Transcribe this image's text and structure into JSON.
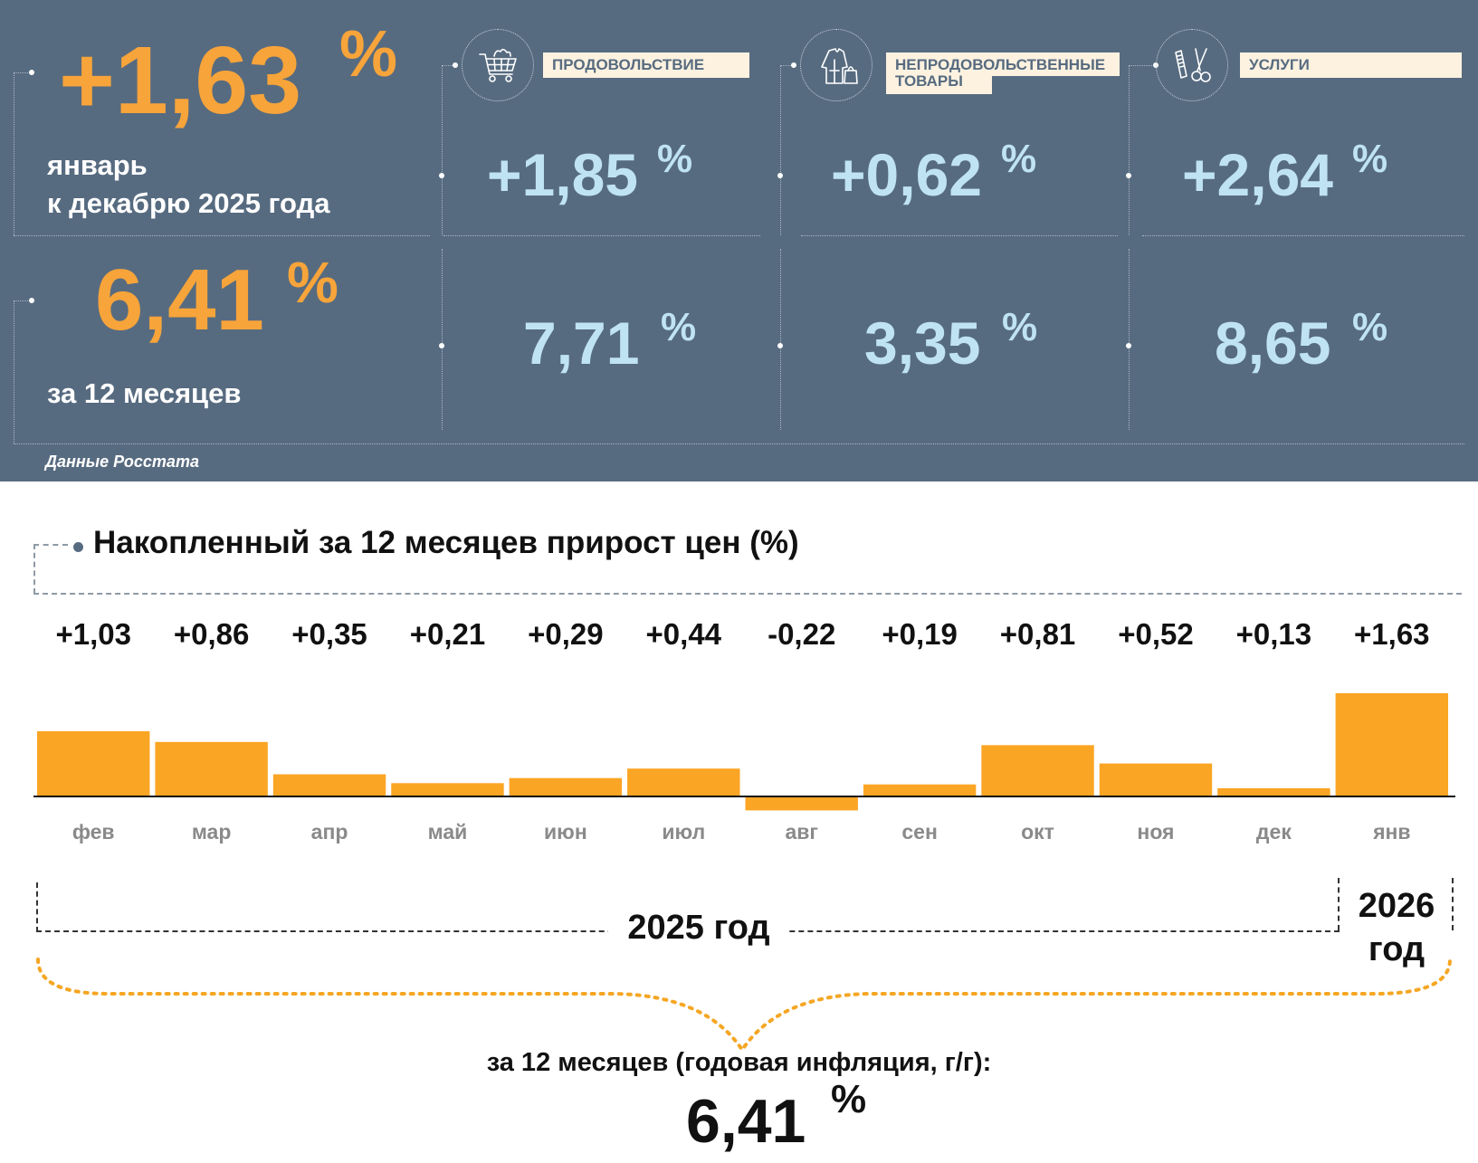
{
  "summary": {
    "monthly": {
      "value": "+1,63",
      "unit": "%",
      "line1": "январь",
      "line2": "к декабрю 2025 года"
    },
    "annual": {
      "value": "6,41",
      "unit": "%",
      "label": "за 12 месяцев"
    },
    "source": "Данные Росстата"
  },
  "categories": [
    {
      "label": "ПРОДОВОЛЬСТВИЕ",
      "icon": "shopping-cart-icon",
      "monthly": "+1,85",
      "annual": "7,71",
      "unit": "%"
    },
    {
      "label_line1": "НЕПРОДОВОЛЬСТВЕННЫЕ",
      "label_line2": "ТОВАРЫ",
      "icon": "clothing-icon",
      "monthly": "+0,62",
      "annual": "3,35",
      "unit": "%"
    },
    {
      "label": "УСЛУГИ",
      "icon": "comb-scissors-icon",
      "monthly": "+2,64",
      "annual": "8,65",
      "unit": "%"
    }
  ],
  "chart_title": "Накопленный за 12 месяцев прирост цен (%)",
  "chart_data": {
    "type": "bar",
    "title": "Накопленный за 12 месяцев прирост цен (%)",
    "categories": [
      "фев",
      "мар",
      "апр",
      "май",
      "июн",
      "июл",
      "авг",
      "сен",
      "окт",
      "ноя",
      "дек",
      "янв"
    ],
    "values": [
      1.03,
      0.86,
      0.35,
      0.21,
      0.29,
      0.44,
      -0.22,
      0.19,
      0.81,
      0.52,
      0.13,
      1.63
    ],
    "data_labels": [
      "+1,03",
      "+0,86",
      "+0,35",
      "+0,21",
      "+0,29",
      "+0,44",
      "-0,22",
      "+0,19",
      "+0,81",
      "+0,52",
      "+0,13",
      "+1,63"
    ],
    "bar_color": "#fba524",
    "grid": false,
    "legend": "none"
  },
  "years": {
    "y2025": "2025 год",
    "y2026_line1": "2026",
    "y2026_line2": "год"
  },
  "annual_summary": {
    "label": "за 12 месяцев (годовая инфляция, г/г):",
    "value": "6,41",
    "unit": "%"
  },
  "colors": {
    "panel": "#576b80",
    "orange": "#f7a43a",
    "light_blue": "#bfe3f3",
    "label_bg": "#fdf2e0",
    "bar": "#fba524"
  }
}
